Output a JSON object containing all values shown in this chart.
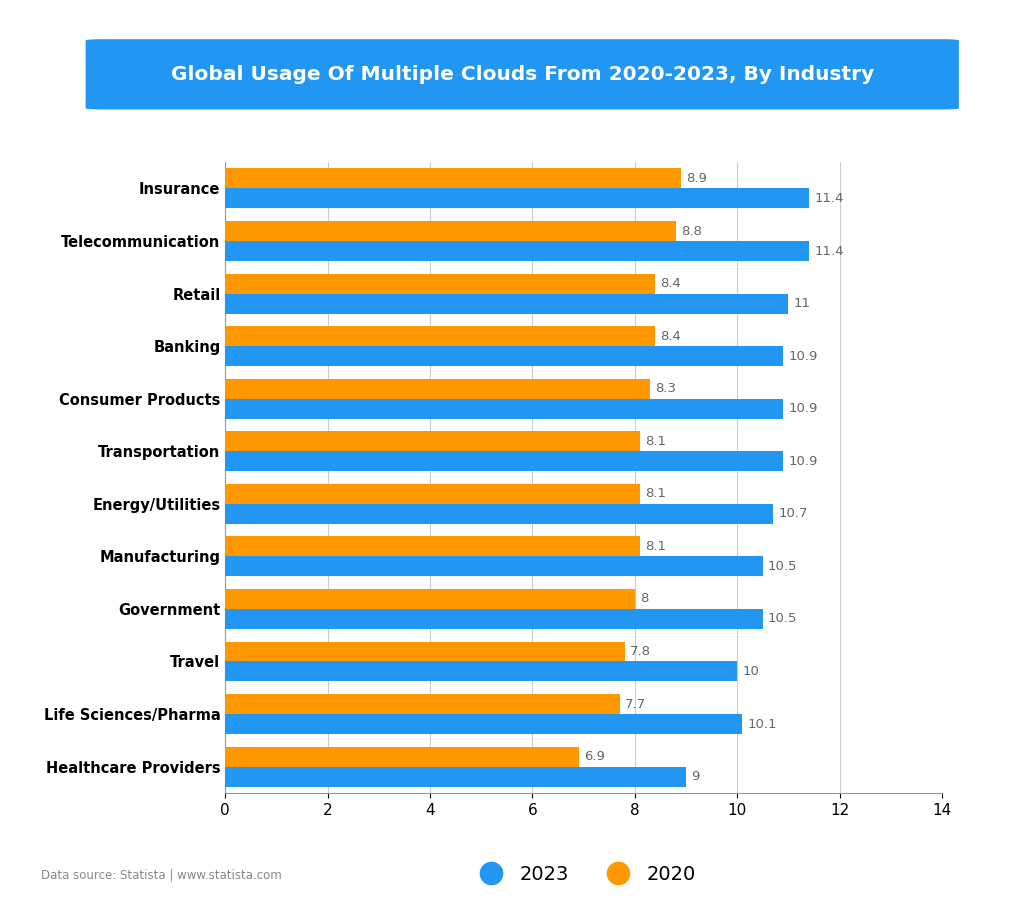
{
  "title": "Global Usage Of Multiple Clouds From 2020-2023, By Industry",
  "categories": [
    "Insurance",
    "Telecommunication",
    "Retail",
    "Banking",
    "Consumer Products",
    "Transportation",
    "Energy/Utilities",
    "Manufacturing",
    "Government",
    "Travel",
    "Life Sciences/Pharma",
    "Healthcare Providers"
  ],
  "values_2023": [
    11.4,
    11.4,
    11,
    10.9,
    10.9,
    10.9,
    10.7,
    10.5,
    10.5,
    10,
    10.1,
    9
  ],
  "values_2020": [
    8.9,
    8.8,
    8.4,
    8.4,
    8.3,
    8.1,
    8.1,
    8.1,
    8,
    7.8,
    7.7,
    6.9
  ],
  "color_2023": "#2196F3",
  "color_2020": "#FF9800",
  "title_bg_color": "#2196F3",
  "title_text_color": "#ffffff",
  "background_color": "#ffffff",
  "xlim": [
    0,
    14
  ],
  "xticks": [
    0,
    2,
    4,
    6,
    8,
    10,
    12,
    14
  ],
  "legend_2023": "2023",
  "legend_2020": "2020",
  "data_source": "Data source: Statista | www.statista.com",
  "bar_height": 0.38,
  "label_fontsize": 9.5,
  "category_fontsize": 10.5,
  "title_fontsize": 14.5,
  "value_label_color": "#666666"
}
